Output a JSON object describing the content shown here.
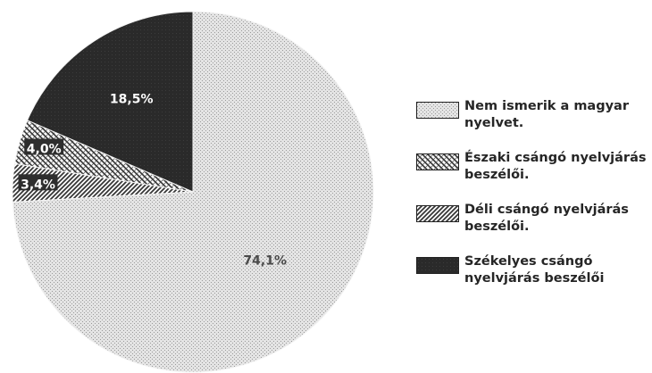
{
  "chart_data": {
    "type": "pie",
    "title": "",
    "start_angle_deg": 0,
    "direction": "clockwise",
    "slices": [
      {
        "label": "Nem ismerik a magyar nyelvet.",
        "value": 74.1,
        "value_label": "74,1%",
        "color": "#d6d6d6",
        "pattern": "fine-dots"
      },
      {
        "label": "Déli csángó nyelvjárás beszélői.",
        "value": 3.4,
        "value_label": "3,4%",
        "color": "#3a3a3a",
        "pattern": "diagonal-lines"
      },
      {
        "label": "Északi csángó nyelvjárás beszélői.",
        "value": 4.0,
        "value_label": "4,0%",
        "color": "#3a3a3a",
        "pattern": "cross-hatch"
      },
      {
        "label": "Székelyes csángó nyelvjárás beszélői",
        "value": 18.5,
        "value_label": "18,5%",
        "color": "#2a2a2a",
        "pattern": "solid-dark"
      }
    ],
    "legend": {
      "position": "right",
      "items": [
        {
          "label": "Nem ismerik a magyar nyelvet.",
          "pattern": "fine-dots"
        },
        {
          "label": "Északi csángó nyelvjárás beszélői.",
          "pattern": "cross-hatch"
        },
        {
          "label": "Déli csángó nyelvjárás beszélői.",
          "pattern": "diagonal-lines"
        },
        {
          "label": "Székelyes csángó nyelvjárás beszélői",
          "pattern": "solid-dark"
        }
      ]
    }
  }
}
